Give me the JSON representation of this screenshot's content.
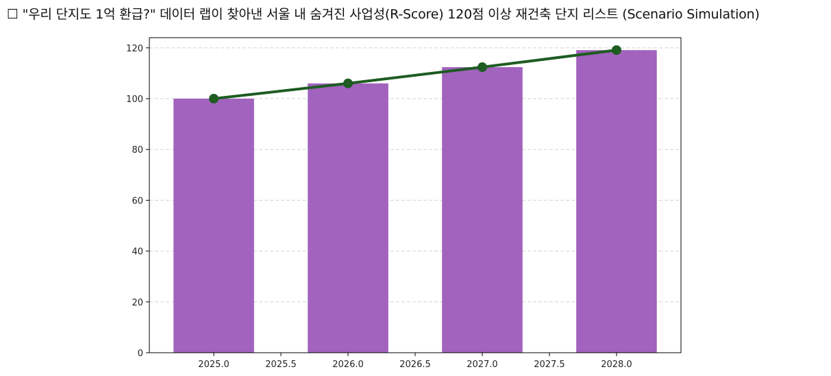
{
  "title": "☐ \"우리 단지도 1억 환급?\" 데이터 랩이 찾아낸 서울 내 숨겨진 사업성(R-Score) 120점 이상 재건축 단지 리스트 (Scenario Simulation)",
  "colors": {
    "bar": "#a163bd",
    "line": "#1e5c22",
    "grid": "#d3d3d3",
    "axis": "#000000"
  },
  "chart_data": {
    "type": "bar",
    "title": "☐ \"우리 단지도 1억 환급?\" 데이터 랩이 찾아낸 서울 내 숨겨진 사업성(R-Score) 120점 이상 재건축 단지 리스트 (Scenario Simulation)",
    "xlabel": "",
    "ylabel": "",
    "x": [
      2025,
      2026,
      2027,
      2028
    ],
    "categories": [
      "2025",
      "2026",
      "2027",
      "2028"
    ],
    "series": [
      {
        "name": "bars",
        "type": "bar",
        "values": [
          100,
          106,
          112.4,
          119.1
        ],
        "color": "#a163bd"
      },
      {
        "name": "line",
        "type": "line",
        "values": [
          100,
          106,
          112.4,
          119.1
        ],
        "color": "#1e5c22",
        "marker": "circle"
      }
    ],
    "xlim": [
      2024.52,
      2028.48
    ],
    "ylim": [
      0,
      124
    ],
    "xticks": [
      "2025.0",
      "2025.5",
      "2026.0",
      "2026.5",
      "2027.0",
      "2027.5",
      "2028.0"
    ],
    "yticks": [
      "0",
      "20",
      "40",
      "60",
      "80",
      "100",
      "120"
    ],
    "grid": {
      "axis": "y",
      "style": "dashed"
    },
    "legend": null
  }
}
